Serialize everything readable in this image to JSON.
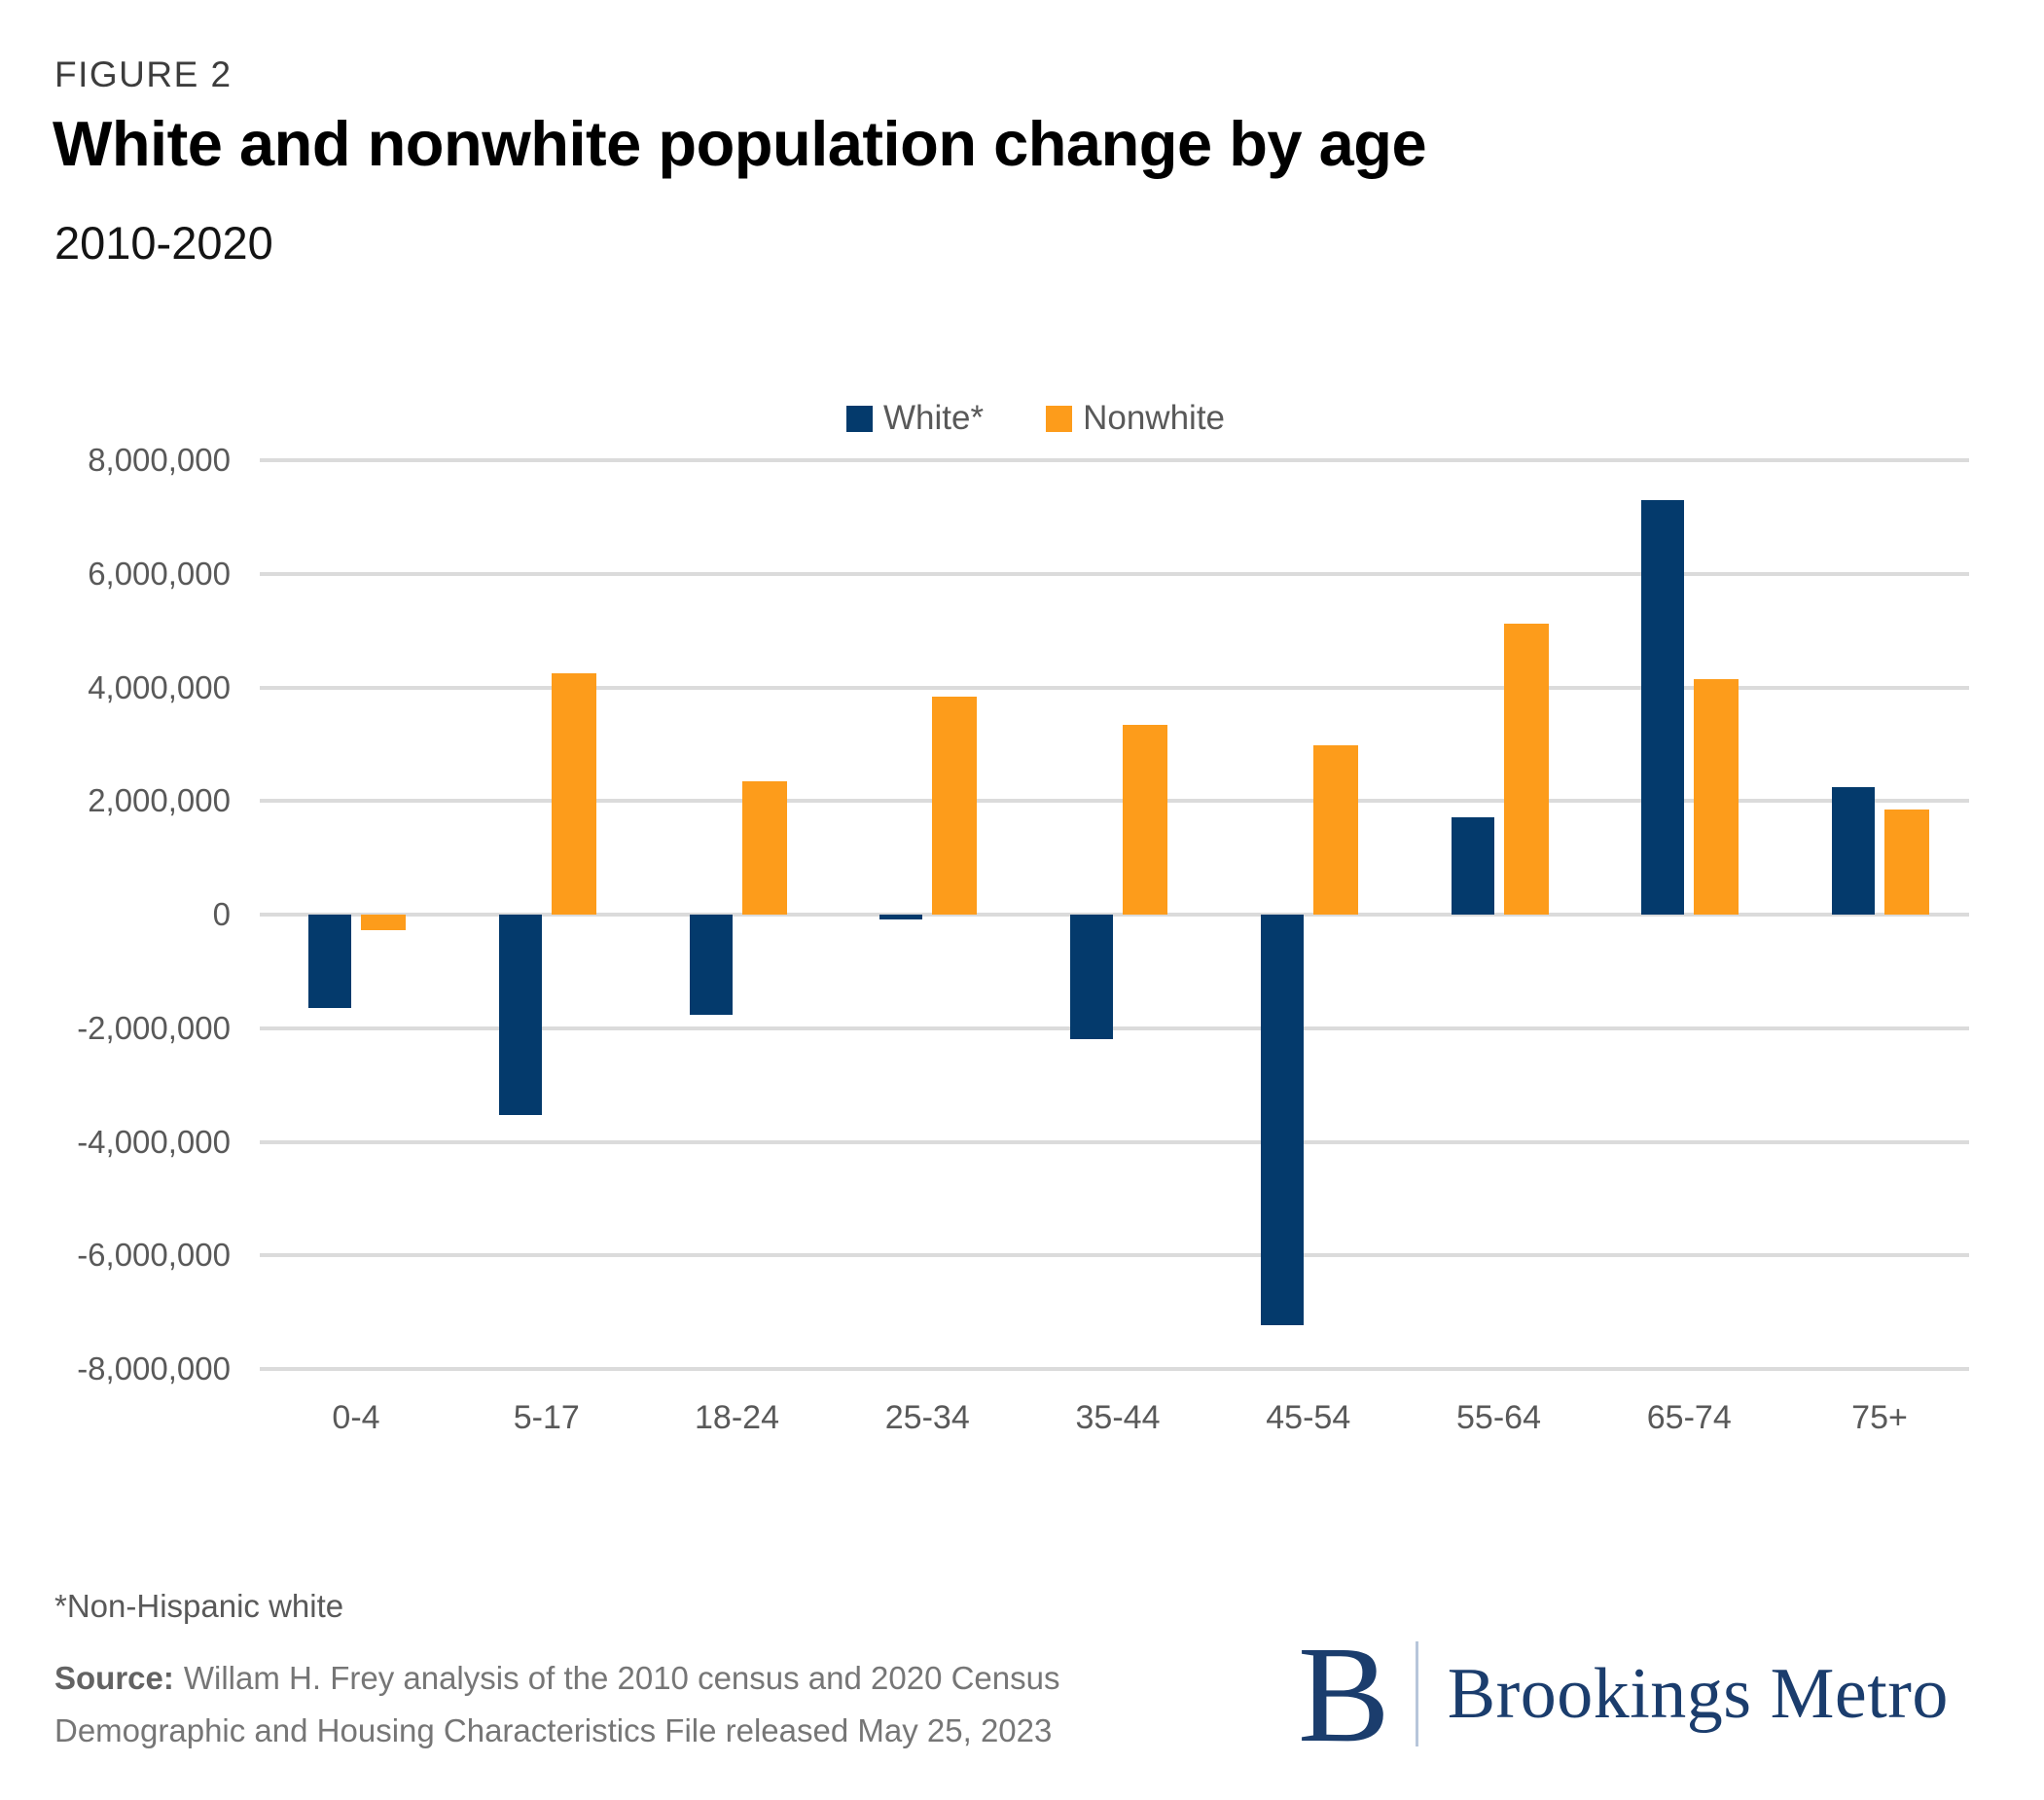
{
  "figure_label": "FIGURE 2",
  "title": "White and nonwhite population change by age",
  "subtitle": "2010-2020",
  "legend": [
    {
      "label": "White*",
      "color": "#043a6c"
    },
    {
      "label": "Nonwhite",
      "color": "#fd9c1b"
    }
  ],
  "chart_data": {
    "type": "bar",
    "title": "White and nonwhite population change by age",
    "subtitle": "2010-2020",
    "xlabel": "",
    "ylabel": "",
    "categories": [
      "0-4",
      "5-17",
      "18-24",
      "25-34",
      "35-44",
      "45-54",
      "55-64",
      "65-74",
      "75+"
    ],
    "series": [
      {
        "name": "White*",
        "color": "#043a6c",
        "values": [
          -1650000,
          -3530000,
          -1760000,
          -80000,
          -2200000,
          -7230000,
          1720000,
          7300000,
          2240000
        ]
      },
      {
        "name": "Nonwhite",
        "color": "#fd9c1b",
        "values": [
          -270000,
          4250000,
          2340000,
          3840000,
          3340000,
          2980000,
          5120000,
          4150000,
          1850000
        ]
      }
    ],
    "ylim": [
      -8000000,
      8000000
    ],
    "yticks": [
      {
        "value": 8000000,
        "label": "8,000,000"
      },
      {
        "value": 6000000,
        "label": "6,000,000"
      },
      {
        "value": 4000000,
        "label": "4,000,000"
      },
      {
        "value": 2000000,
        "label": "2,000,000"
      },
      {
        "value": 0,
        "label": "0"
      },
      {
        "value": -2000000,
        "label": "-2,000,000"
      },
      {
        "value": -4000000,
        "label": "-4,000,000"
      },
      {
        "value": -6000000,
        "label": "-6,000,000"
      },
      {
        "value": -8000000,
        "label": "-8,000,000"
      }
    ],
    "grid": "horizontal",
    "legend_position": "top-center"
  },
  "footnote": "*Non-Hispanic white",
  "source": {
    "label": "Source:",
    "line1": "Willam H. Frey analysis of the 2010 census and 2020 Census",
    "line2": "Demographic and Housing Characteristics File released May 25, 2023"
  },
  "logo": {
    "monogram": "B",
    "text": "Brookings Metro"
  }
}
